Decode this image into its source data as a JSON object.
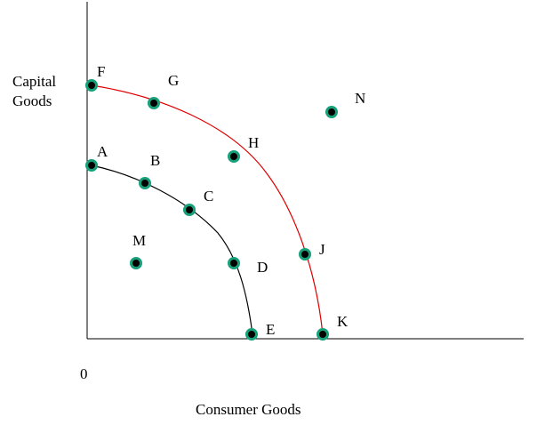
{
  "diagram": {
    "y_axis_label": [
      "Capital",
      "Goods"
    ],
    "x_axis_label": "Consumer Goods",
    "origin_label": "0",
    "colors": {
      "outer_curve": "#e00000",
      "inner_curve": "#000000",
      "point_fill": "#000000",
      "point_ring": "#17a07a",
      "axis": "#000000"
    },
    "points": [
      {
        "id": "F",
        "label": "F"
      },
      {
        "id": "G",
        "label": "G"
      },
      {
        "id": "H",
        "label": "H"
      },
      {
        "id": "J",
        "label": "J"
      },
      {
        "id": "K",
        "label": "K"
      },
      {
        "id": "A",
        "label": "A"
      },
      {
        "id": "B",
        "label": "B"
      },
      {
        "id": "C",
        "label": "C"
      },
      {
        "id": "D",
        "label": "D"
      },
      {
        "id": "E",
        "label": "E"
      },
      {
        "id": "M",
        "label": "M"
      },
      {
        "id": "N",
        "label": "N"
      }
    ]
  }
}
